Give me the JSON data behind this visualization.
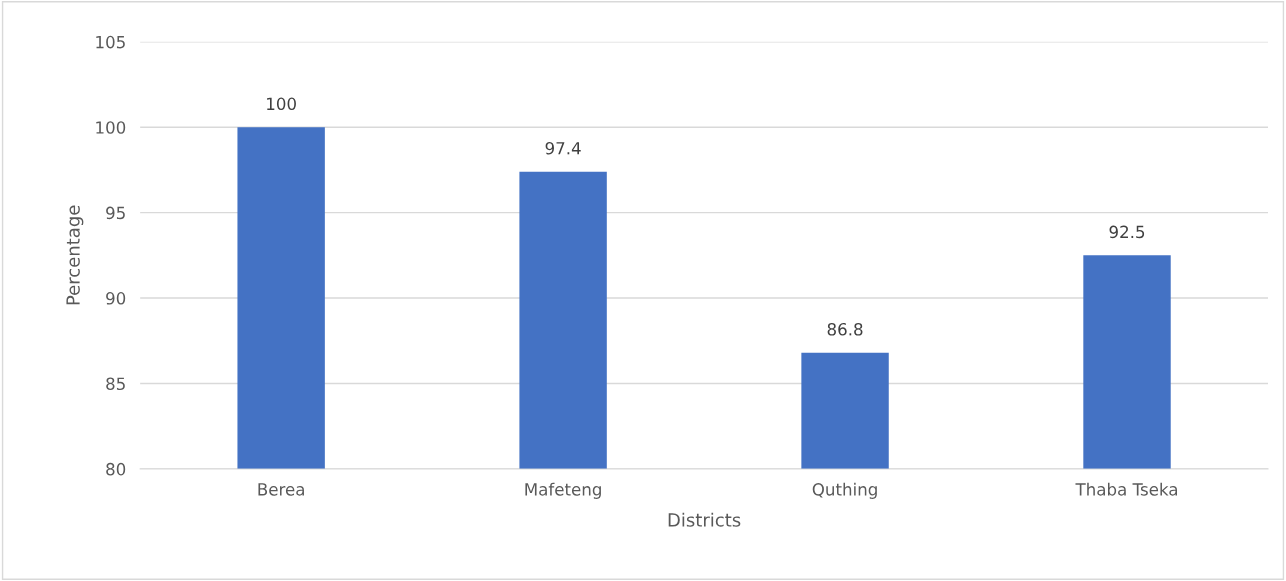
{
  "chart_data": {
    "type": "bar",
    "xlabel": "Districts",
    "ylabel": "Percentage",
    "categories": [
      "Berea",
      "Mafeteng",
      "Quthing",
      "Thaba Tseka"
    ],
    "values": [
      100,
      97.4,
      86.8,
      92.5
    ],
    "color": "#4472c4",
    "ylim": [
      80,
      105
    ],
    "yticks": [
      80,
      85,
      90,
      95,
      100,
      105
    ],
    "grid": "y",
    "data_labels": true,
    "legend": false
  }
}
